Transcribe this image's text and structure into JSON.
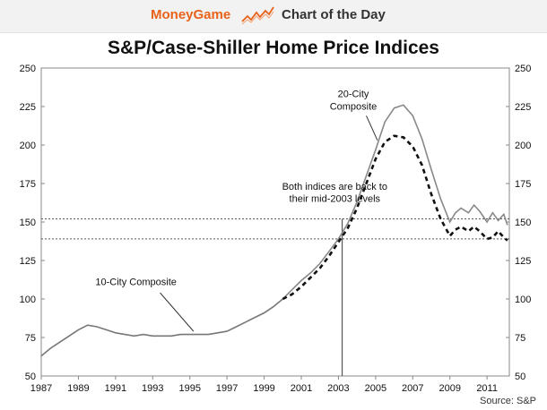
{
  "header": {
    "brand": "MoneyGame",
    "label": "Chart of the Day",
    "icon": "trend-line-icon",
    "brand_color": "#e8621a"
  },
  "chart_data": {
    "type": "line",
    "title": "S&P/Case-Shiller Home Price Indices",
    "x_ticks": [
      "1987",
      "1989",
      "1991",
      "1993",
      "1995",
      "1997",
      "1999",
      "2001",
      "2003",
      "2005",
      "2007",
      "2009",
      "2011"
    ],
    "y_ticks": [
      "50",
      "75",
      "100",
      "125",
      "150",
      "175",
      "200",
      "225",
      "250"
    ],
    "xlim": [
      1987,
      2012.2
    ],
    "ylim": [
      50,
      250
    ],
    "series": [
      {
        "name": "20-City Composite",
        "style": "solid",
        "color": "#888888",
        "x": [
          2000,
          2000.5,
          2001,
          2001.5,
          2002,
          2002.5,
          2003,
          2003.5,
          2004,
          2004.5,
          2005,
          2005.5,
          2006,
          2006.5,
          2007,
          2007.5,
          2008,
          2008.5,
          2009,
          2009.3,
          2009.6,
          2010,
          2010.3,
          2010.6,
          2011,
          2011.3,
          2011.6,
          2011.9,
          2012.1
        ],
        "values": [
          100,
          106,
          112,
          117,
          123,
          131,
          139,
          149,
          163,
          180,
          197,
          215,
          224,
          226,
          219,
          204,
          184,
          165,
          150,
          156,
          159,
          156,
          161,
          157,
          150,
          156,
          151,
          155,
          148
        ]
      },
      {
        "name": "10-City Composite",
        "style": "mixed",
        "color": "#111111",
        "x": [
          1987,
          1987.5,
          1988,
          1988.5,
          1989,
          1989.5,
          1990,
          1990.5,
          1991,
          1991.5,
          1992,
          1992.5,
          1993,
          1993.5,
          1994,
          1994.5,
          1995,
          1995.5,
          1996,
          1996.5,
          1997,
          1997.5,
          1998,
          1998.5,
          1999,
          1999.5,
          2000,
          2000.5,
          2001,
          2001.5,
          2002,
          2002.5,
          2003,
          2003.5,
          2004,
          2004.5,
          2005,
          2005.5,
          2006,
          2006.5,
          2007,
          2007.5,
          2008,
          2008.5,
          2009,
          2009.3,
          2009.6,
          2010,
          2010.3,
          2010.6,
          2011,
          2011.3,
          2011.6,
          2011.9,
          2012.1
        ],
        "values": [
          63,
          68,
          72,
          76,
          80,
          83,
          82,
          80,
          78,
          77,
          76,
          77,
          76,
          76,
          76,
          77,
          77,
          77,
          77,
          78,
          79,
          82,
          85,
          88,
          91,
          95,
          100,
          103,
          108,
          114,
          120,
          128,
          137,
          146,
          159,
          175,
          191,
          202,
          206,
          205,
          199,
          187,
          168,
          152,
          141,
          145,
          147,
          144,
          147,
          144,
          139,
          140,
          144,
          140,
          138
        ]
      }
    ],
    "reference_lines": [
      152,
      139
    ],
    "vertical_marker_year": 2003.2,
    "annotations": [
      {
        "text": "20-City",
        "x": 2003.8,
        "y": 231
      },
      {
        "text": "Composite",
        "x": 2003.8,
        "y": 223
      },
      {
        "text": "Both indices are back to",
        "x": 2002.8,
        "y": 171
      },
      {
        "text": "their mid-2003 levels",
        "x": 2002.8,
        "y": 163
      },
      {
        "text": "10-City Composite",
        "x": 1992.1,
        "y": 109
      }
    ],
    "source": "Source: S&P"
  }
}
